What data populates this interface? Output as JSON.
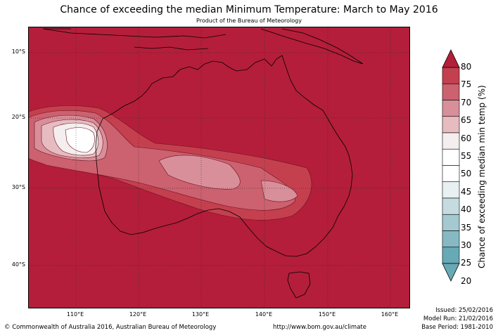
{
  "title": "Chance of exceeding the median Minimum Temperature: March to May 2016",
  "subtitle": "Product of the Bureau of Meteorology",
  "axes": {
    "latitudes": [
      "10°S",
      "20°S",
      "30°S",
      "40°S"
    ],
    "longitudes": [
      "110°E",
      "120°E",
      "130°E",
      "140°E",
      "150°E",
      "160°E"
    ]
  },
  "colorbar": {
    "title": "Chance of exceeding median min temp (%)",
    "ticks": [
      "80",
      "75",
      "70",
      "65",
      "60",
      "55",
      "50",
      "45",
      "40",
      "35",
      "30",
      "25",
      "20"
    ],
    "colors": [
      "#b41e3a",
      "#c4404f",
      "#cc6170",
      "#d88f99",
      "#e7bcc1",
      "#f4eeee",
      "#ffffff",
      "#ffffff",
      "#e8f0f2",
      "#c5dbe0",
      "#a4c9d0",
      "#86b9c3",
      "#68a9b6"
    ]
  },
  "footer": {
    "copyright": "© Commonwealth of Australia 2016, Australian Bureau of Meteorology",
    "url": "http://www.bom.gov.au/climate",
    "issued": "Issued: 25/02/2016",
    "model_run": "Model Run: 21/02/2016",
    "base_period": "Base Period: 1981-2010"
  }
}
